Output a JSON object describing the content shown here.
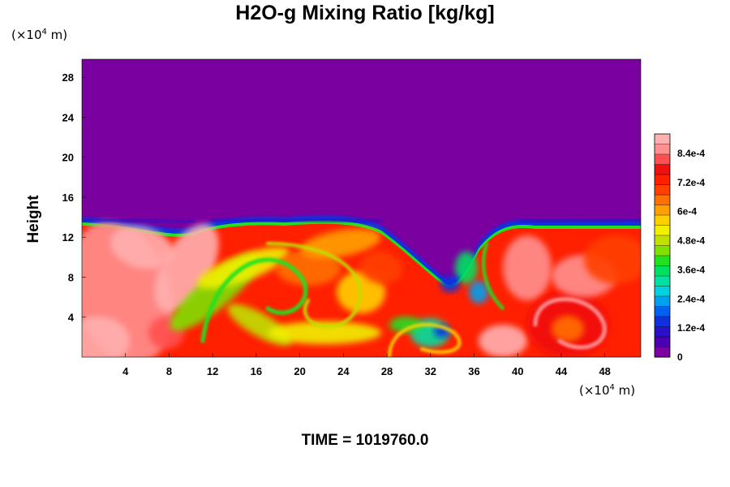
{
  "title": "H2O-g Mixing Ratio [kg/kg]",
  "units": {
    "y_prefix": "(×10",
    "y_exp": "4",
    "y_suffix": " m)",
    "x_prefix": "(×10",
    "x_exp": "4",
    "x_suffix": " m)"
  },
  "time_label": "TIME = 1019760.0",
  "chart_data": {
    "type": "heatmap",
    "title": "H2O-g Mixing Ratio [kg/kg]",
    "xlabel": "",
    "ylabel": "Height",
    "x_unit": "(×10^4 m)",
    "y_unit": "(×10^4 m)",
    "xlim": [
      0,
      51.3
    ],
    "ylim": [
      0,
      29.8
    ],
    "x_ticks": [
      4,
      8,
      12,
      16,
      20,
      24,
      28,
      32,
      36,
      40,
      44,
      48
    ],
    "y_ticks": [
      4,
      8,
      12,
      16,
      20,
      24,
      28
    ],
    "colorbar": {
      "range": [
        0,
        0.00092
      ],
      "tick_labels": [
        "0",
        "1.2e-4",
        "2.4e-4",
        "3.6e-4",
        "4.8e-4",
        "6e-4",
        "7.2e-4",
        "8.4e-4"
      ],
      "tick_values": [
        0,
        0.00012,
        0.00024,
        0.00036,
        0.00048,
        0.0006,
        0.00072,
        0.00084
      ],
      "colors": [
        "#7a00a0",
        "#4a00b0",
        "#2a10c8",
        "#1030e0",
        "#0060f0",
        "#00a0f0",
        "#00d0e0",
        "#00e0a0",
        "#00e060",
        "#20e020",
        "#80e000",
        "#c0e000",
        "#f0f000",
        "#ffd000",
        "#ffa000",
        "#ff7000",
        "#ff4000",
        "#ff2000",
        "#f01010",
        "#ff5050",
        "#ff9090",
        "#ffb0b0"
      ]
    },
    "moisture_top_height": 13.8,
    "background_value": 0
  }
}
